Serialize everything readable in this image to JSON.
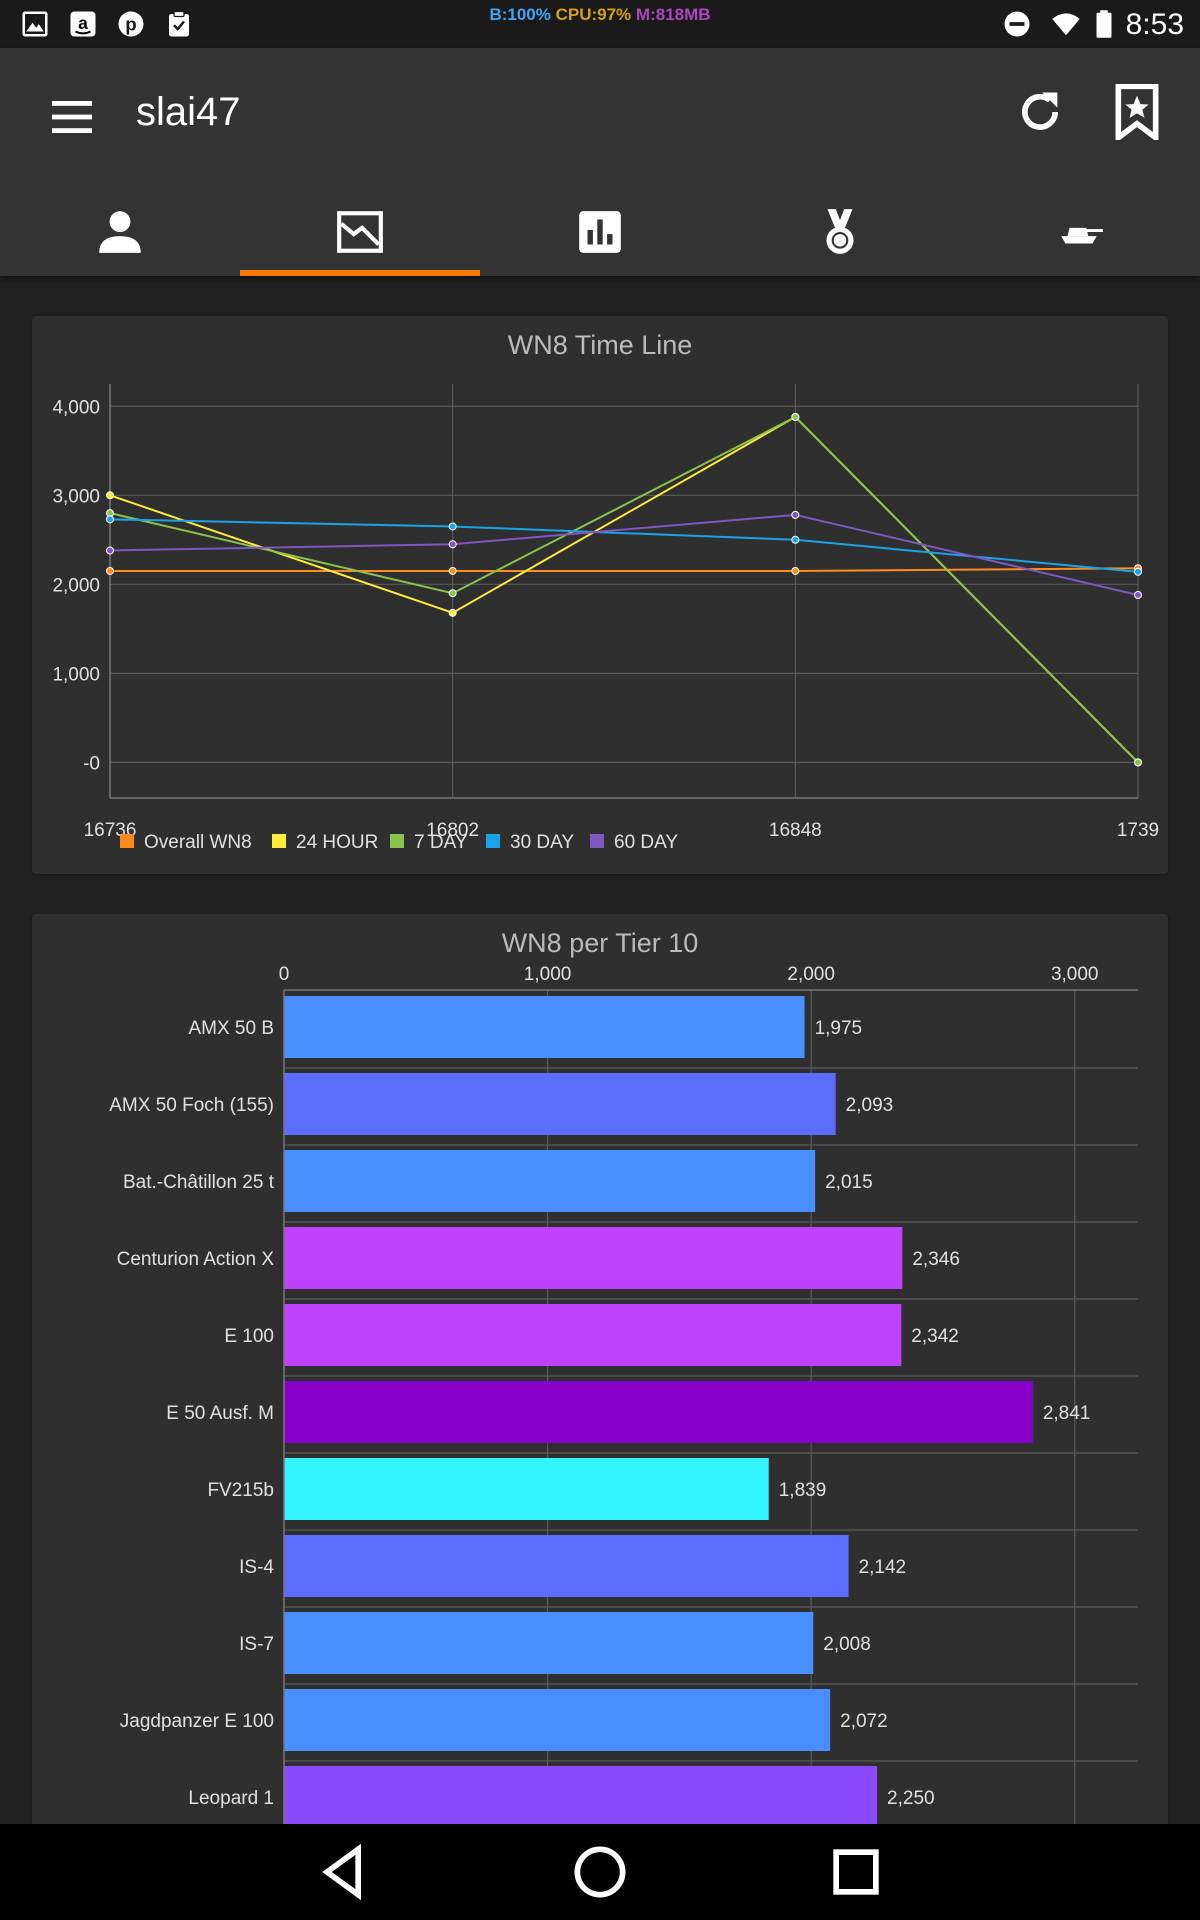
{
  "status_bar": {
    "icons": [
      "gallery-icon",
      "amazon-icon",
      "pinterest-icon",
      "clipboard-check-icon"
    ],
    "perf_battery": "B:100%",
    "perf_cpu": "CPU:97%",
    "perf_mem": "M:818MB",
    "perf_colors": {
      "battery": "#42a5f5",
      "cpu": "#d4a017",
      "mem": "#ab47bc"
    },
    "right_icons": [
      "do-not-disturb-icon",
      "wifi-icon",
      "battery-icon"
    ],
    "clock": "8:53"
  },
  "app_bar": {
    "menu_icon": "hamburger-menu-icon",
    "title": "slai47",
    "refresh_icon": "refresh-icon",
    "bookmark_icon": "bookmark-star-icon",
    "accent": "#f57c00"
  },
  "tabs": [
    {
      "icon": "person-icon",
      "selected": false
    },
    {
      "icon": "timeline-graph-icon",
      "selected": true
    },
    {
      "icon": "bar-chart-icon",
      "selected": false
    },
    {
      "icon": "medal-icon",
      "selected": false
    },
    {
      "icon": "tank-icon",
      "selected": false
    }
  ],
  "chart_data": [
    {
      "type": "line",
      "title": "WN8 Time Line",
      "xlabel": "",
      "ylabel": "",
      "x": [
        "16736",
        "16802",
        "16848",
        "1739"
      ],
      "y_ticks": [
        "-0",
        "1,000",
        "2,000",
        "3,000",
        "4,000"
      ],
      "ylim": [
        -400,
        4250
      ],
      "grid": true,
      "legend_placement": "bottom-left",
      "series": [
        {
          "name": "Overall WN8",
          "color": "#ff8c1a",
          "values": [
            2150,
            2150,
            2150,
            2180
          ]
        },
        {
          "name": "24 HOUR",
          "color": "#ffeb3b",
          "values": [
            3000,
            1680,
            3880,
            0
          ]
        },
        {
          "name": "7 DAY",
          "color": "#8bc34a",
          "values": [
            2800,
            1900,
            3880,
            0
          ]
        },
        {
          "name": "30 DAY",
          "color": "#1aa3e8",
          "values": [
            2730,
            2650,
            2500,
            2140
          ]
        },
        {
          "name": "60 DAY",
          "color": "#7e57c2",
          "values": [
            2380,
            2450,
            2780,
            1880
          ]
        }
      ]
    },
    {
      "type": "bar",
      "orientation": "horizontal",
      "title": "WN8 per Tier 10",
      "xlabel": "",
      "ylabel": "",
      "x_ticks": [
        "0",
        "1,000",
        "2,000",
        "3,000"
      ],
      "xlim": [
        0,
        3240
      ],
      "grid": true,
      "categories": [
        "AMX 50 B",
        "AMX 50 Foch (155)",
        "Bat.-Châtillon 25 t",
        "Centurion Action X",
        "E 100",
        "E 50 Ausf. M",
        "FV215b",
        "IS-4",
        "IS-7",
        "Jagdpanzer E 100",
        "Leopard 1"
      ],
      "values": [
        1975,
        2093,
        2015,
        2346,
        2342,
        2841,
        1839,
        2142,
        2008,
        2072,
        2250
      ],
      "labels": [
        "1,975",
        "2,093",
        "2,015",
        "2,346",
        "2,342",
        "2,841",
        "1,839",
        "2,142",
        "2,008",
        "2,072",
        "2,250"
      ],
      "colors": [
        "#4a8fff",
        "#5c6cff",
        "#4a8fff",
        "#bf40ff",
        "#bf40ff",
        "#8800cc",
        "#33f5ff",
        "#5c6cff",
        "#4a8fff",
        "#4a8fff",
        "#8c4aff"
      ]
    }
  ],
  "nav_bar": {
    "back_icon": "back-triangle-icon",
    "home_icon": "home-circle-icon",
    "recents_icon": "recents-square-icon"
  }
}
